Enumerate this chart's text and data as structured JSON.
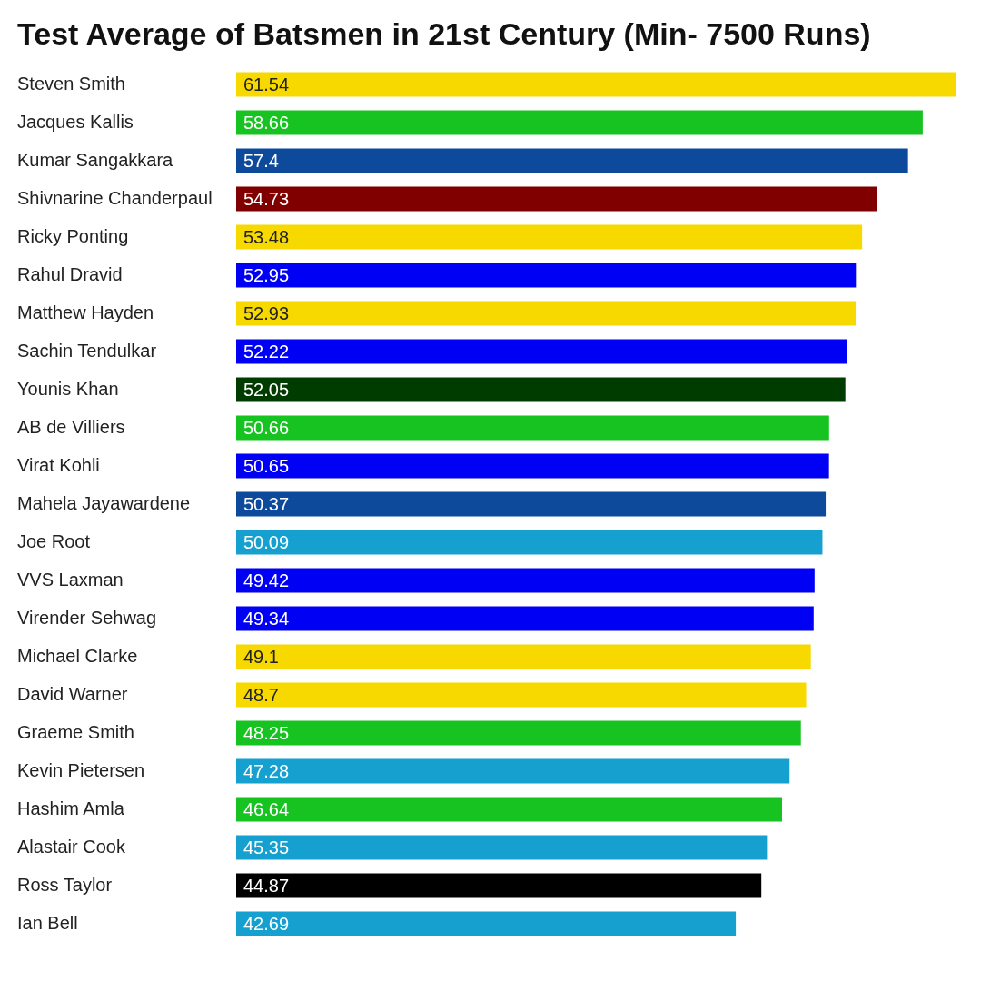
{
  "chart_data": {
    "type": "bar",
    "orientation": "horizontal",
    "title": "Test Average of Batsmen in 21st Century (Min- 7500 Runs)",
    "categories": [
      "Steven Smith",
      "Jacques Kallis",
      "Kumar Sangakkara",
      "Shivnarine Chanderpaul",
      "Ricky Ponting",
      "Rahul Dravid",
      "Matthew Hayden",
      "Sachin Tendulkar",
      "Younis Khan",
      "AB de Villiers",
      "Virat Kohli",
      "Mahela Jayawardene",
      "Joe Root",
      "VVS Laxman",
      "Virender Sehwag",
      "Michael Clarke",
      "David Warner",
      "Graeme Smith",
      "Kevin Pietersen",
      "Hashim Amla",
      "Alastair Cook",
      "Ross Taylor",
      "Ian Bell"
    ],
    "values": [
      61.54,
      58.66,
      57.4,
      54.73,
      53.48,
      52.95,
      52.93,
      52.22,
      52.05,
      50.66,
      50.65,
      50.37,
      50.09,
      49.42,
      49.34,
      49.1,
      48.7,
      48.25,
      47.28,
      46.64,
      45.35,
      44.87,
      42.69
    ],
    "colors": [
      "#f7d900",
      "#17c321",
      "#0d4a9b",
      "#800000",
      "#f7d900",
      "#0000f5",
      "#f7d900",
      "#0000f5",
      "#003c00",
      "#17c321",
      "#0000f5",
      "#0d4a9b",
      "#15a0cf",
      "#0000f5",
      "#0000f5",
      "#f7d900",
      "#f7d900",
      "#17c321",
      "#15a0cf",
      "#17c321",
      "#15a0cf",
      "#000000",
      "#15a0cf"
    ],
    "data_labels": true
  }
}
